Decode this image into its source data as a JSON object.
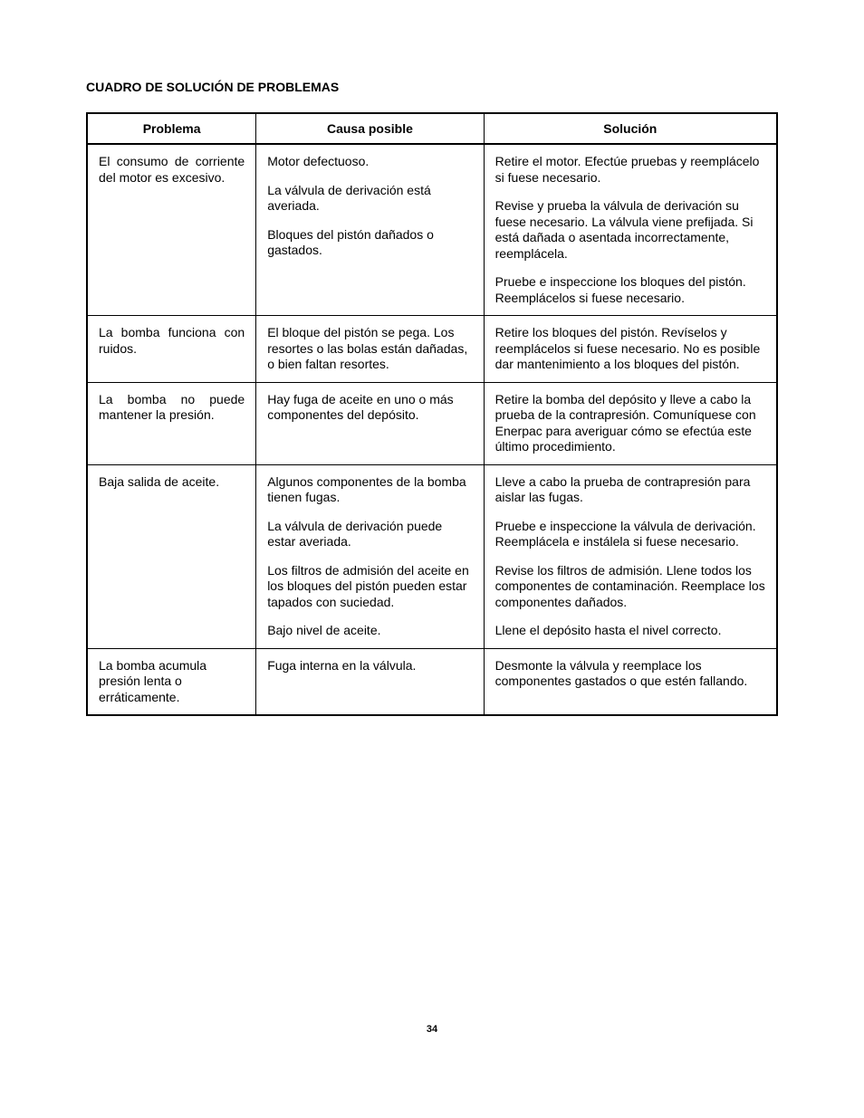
{
  "title": "CUADRO DE SOLUCIÓN DE PROBLEMAS",
  "page_number": "34",
  "table": {
    "columns": [
      "Problema",
      "Causa posible",
      "Solución"
    ],
    "col_widths_pct": [
      24.5,
      33,
      42.5
    ],
    "border_color": "#000000",
    "background_color": "#ffffff",
    "font_size_pt": 14,
    "header_font_weight": "bold",
    "rows": [
      {
        "problem": "El consumo de corriente del motor es excesivo.",
        "pairs": [
          {
            "cause": "Motor defectuoso.",
            "solution": "Retire el motor. Efectúe pruebas y reemplácelo si fuese necesario."
          },
          {
            "cause": "La válvula de derivación está averiada.",
            "solution": "Revise y prueba la válvula de derivación su fuese necesario. La válvula viene prefijada. Si está dañada o asentada incorrectamente, reemplácela."
          },
          {
            "cause": "Bloques del pistón dañados o gastados.",
            "solution": "Pruebe e inspeccione los bloques del pistón. Reemplácelos si fuese necesario."
          }
        ]
      },
      {
        "problem": "La bomba funciona con ruidos.",
        "pairs": [
          {
            "cause": "El bloque del pistón se pega. Los resortes o las bolas están dañadas, o bien faltan resortes.",
            "solution": "Retire los bloques del pistón. Revíselos y reemplácelos si fuese necesario. No es posible dar mantenimiento a los bloques del pistón."
          }
        ]
      },
      {
        "problem": "La bomba no puede mantener la presión.",
        "pairs": [
          {
            "cause": "Hay fuga de aceite en uno o más componentes del depósito.",
            "solution": "Retire la bomba del depósito y lleve a cabo la prueba de la contrapresión. Comuníquese con Enerpac para averiguar cómo se efectúa este último procedimiento."
          }
        ]
      },
      {
        "problem": "Baja salida de aceite.",
        "pairs": [
          {
            "cause": "Algunos componentes de la bomba tienen fugas.",
            "solution": "Lleve a cabo la prueba de contrapresión para aislar las fugas."
          },
          {
            "cause": "La válvula de derivación puede estar averiada.",
            "solution": "Pruebe e inspeccione la válvula de derivación. Reemplácela e instálela si fuese necesario."
          },
          {
            "cause": "Los filtros de admisión del aceite en los bloques del pistón pueden estar tapados con suciedad.",
            "solution": "Revise los filtros de admisión. Llene todos los componentes de contaminación. Reemplace los componentes dañados."
          },
          {
            "cause": "Bajo nivel de aceite.",
            "solution": "Llene el depósito hasta el nivel correcto."
          }
        ]
      },
      {
        "problem": "La bomba acumula presión lenta o erráticamente.",
        "pairs": [
          {
            "cause": "Fuga interna en la válvula.",
            "solution": "Desmonte la válvula y reemplace los componentes gastados o que estén fallando."
          }
        ]
      }
    ]
  }
}
